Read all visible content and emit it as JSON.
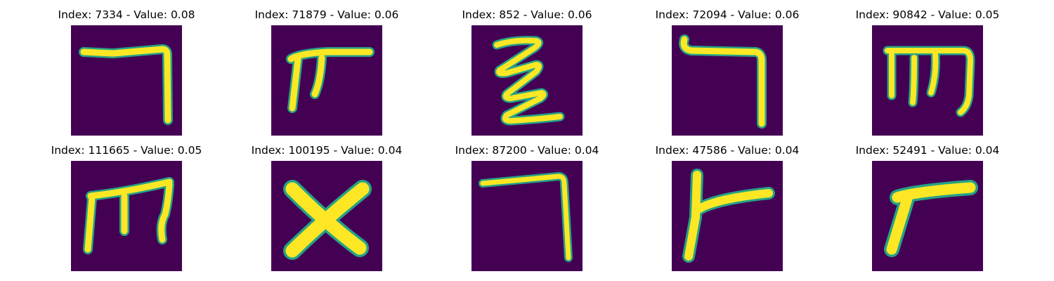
{
  "figure": {
    "colors": {
      "background": "#440154",
      "stroke": "#fde725",
      "edge": "#26a287"
    },
    "panels": [
      {
        "title": "Index: 7334 - Value: 0.08",
        "index": 7334,
        "value": 0.08,
        "glyph": "corner-hook"
      },
      {
        "title": "Index: 71879 - Value: 0.06",
        "index": 71879,
        "value": 0.06,
        "glyph": "pi-shape"
      },
      {
        "title": "Index: 852 - Value: 0.06",
        "index": 852,
        "value": 0.06,
        "glyph": "zigzag"
      },
      {
        "title": "Index: 72094 - Value: 0.06",
        "index": 72094,
        "value": 0.06,
        "glyph": "corner-hook-curled"
      },
      {
        "title": "Index: 90842 - Value: 0.05",
        "index": 90842,
        "value": 0.05,
        "glyph": "m-shape"
      },
      {
        "title": "Index: 111665 - Value: 0.05",
        "index": 111665,
        "value": 0.05,
        "glyph": "m-shape-tall"
      },
      {
        "title": "Index: 100195 - Value: 0.04",
        "index": 100195,
        "value": 0.04,
        "glyph": "x-cross"
      },
      {
        "title": "Index: 87200 - Value: 0.04",
        "index": 87200,
        "value": 0.04,
        "glyph": "corner-hook-thin"
      },
      {
        "title": "Index: 47586 - Value: 0.04",
        "index": 47586,
        "value": 0.04,
        "glyph": "y-branch"
      },
      {
        "title": "Index: 52491 - Value: 0.04",
        "index": 52491,
        "value": 0.04,
        "glyph": "r-shape"
      }
    ]
  }
}
